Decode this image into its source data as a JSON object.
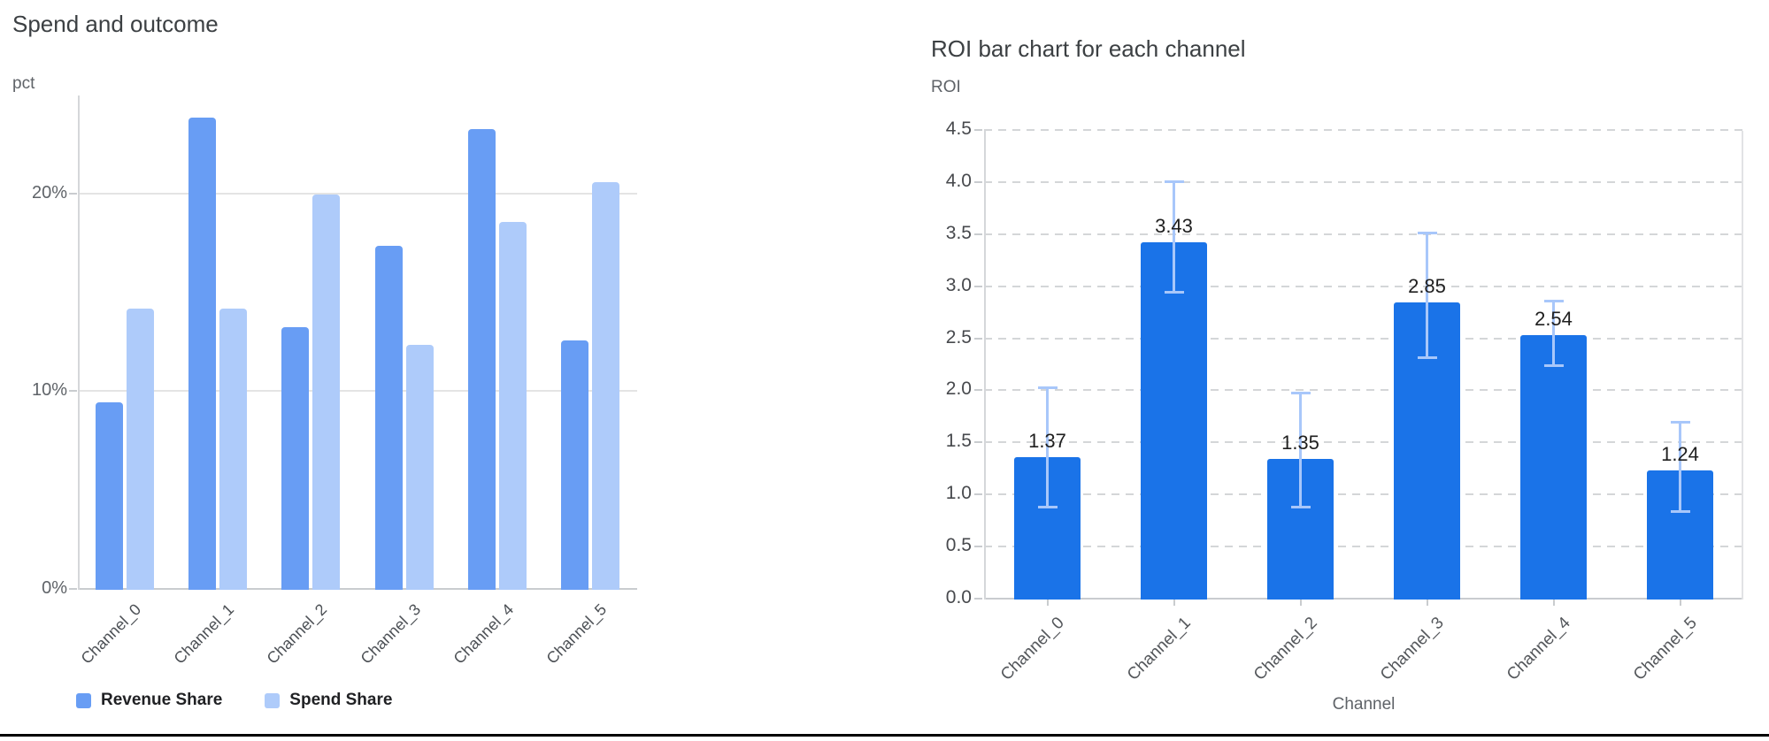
{
  "chart_data": [
    {
      "id": "spend_and_outcome",
      "type": "bar",
      "title": "Spend and outcome",
      "ylabel": "pct",
      "xlabel": "",
      "categories": [
        "Channel_0",
        "Channel_1",
        "Channel_2",
        "Channel_3",
        "Channel_4",
        "Channel_5"
      ],
      "series": [
        {
          "name": "Revenue Share",
          "color": "#689df4",
          "values": [
            9.5,
            23.9,
            13.3,
            17.4,
            23.3,
            12.6
          ]
        },
        {
          "name": "Spend Share",
          "color": "#aecbfa",
          "values": [
            14.2,
            14.2,
            20.0,
            12.4,
            18.6,
            20.6
          ]
        }
      ],
      "ylim": [
        0,
        25
      ],
      "yticks": [
        {
          "value": 0,
          "label": "0%"
        },
        {
          "value": 10,
          "label": "10%"
        },
        {
          "value": 20,
          "label": "20%"
        }
      ],
      "grid": "solid",
      "legend_position": "bottom"
    },
    {
      "id": "roi_by_channel",
      "type": "bar",
      "title": "ROI bar chart for each channel",
      "ylabel": "ROI",
      "xlabel": "Channel",
      "categories": [
        "Channel_0",
        "Channel_1",
        "Channel_2",
        "Channel_3",
        "Channel_4",
        "Channel_5"
      ],
      "series": [
        {
          "name": "ROI",
          "color": "#1a73e8",
          "values": [
            1.37,
            3.43,
            1.35,
            2.85,
            2.54,
            1.24
          ],
          "error_low": [
            0.88,
            2.95,
            0.88,
            2.32,
            2.24,
            0.84
          ],
          "error_high": [
            2.04,
            4.02,
            1.99,
            3.52,
            2.87,
            1.71
          ],
          "error_color": "#a8c7fa"
        }
      ],
      "value_labels": [
        "1.37",
        "3.43",
        "1.35",
        "2.85",
        "2.54",
        "1.24"
      ],
      "ylim": [
        0,
        4.5
      ],
      "yticks": [
        {
          "value": 0.0,
          "label": "0.0"
        },
        {
          "value": 0.5,
          "label": "0.5"
        },
        {
          "value": 1.0,
          "label": "1.0"
        },
        {
          "value": 1.5,
          "label": "1.5"
        },
        {
          "value": 2.0,
          "label": "2.0"
        },
        {
          "value": 2.5,
          "label": "2.5"
        },
        {
          "value": 3.0,
          "label": "3.0"
        },
        {
          "value": 3.5,
          "label": "3.5"
        },
        {
          "value": 4.0,
          "label": "4.0"
        },
        {
          "value": 4.5,
          "label": "4.5"
        }
      ],
      "grid": "dashed",
      "legend_position": "none"
    }
  ]
}
